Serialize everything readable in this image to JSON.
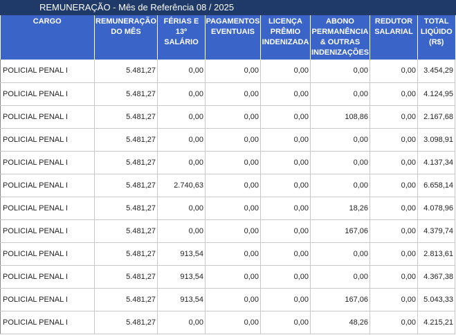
{
  "title": "REMUNERAÇÃO - Mês de Referência 08 / 2025",
  "headers": [
    "CARGO",
    "REMUNERAÇÃO DO MÊS",
    "FÉRIAS E 13º SALÁRIO",
    "PAGAMENTOS EVENTUAIS",
    "LICENÇA PRÊMIO INDENIZADA",
    "ABONO PERMANÊNCIA & OUTRAS INDENIZAÇÕES",
    "REDUTOR SALARIAL",
    "TOTAL LIQÚIDO (R$)"
  ],
  "rows": [
    [
      "POLICIAL PENAL I",
      "5.481,27",
      "0,00",
      "0,00",
      "0,00",
      "0,00",
      "0,00",
      "3.454,29"
    ],
    [
      "POLICIAL PENAL I",
      "5.481,27",
      "0,00",
      "0,00",
      "0,00",
      "0,00",
      "0,00",
      "4.124,95"
    ],
    [
      "POLICIAL PENAL I",
      "5.481,27",
      "0,00",
      "0,00",
      "0,00",
      "108,86",
      "0,00",
      "2.167,68"
    ],
    [
      "POLICIAL PENAL I",
      "5.481,27",
      "0,00",
      "0,00",
      "0,00",
      "0,00",
      "0,00",
      "3.098,91"
    ],
    [
      "POLICIAL PENAL I",
      "5.481,27",
      "0,00",
      "0,00",
      "0,00",
      "0,00",
      "0,00",
      "4.137,34"
    ],
    [
      "POLICIAL PENAL I",
      "5.481,27",
      "2.740,63",
      "0,00",
      "0,00",
      "0,00",
      "0,00",
      "6.658,14"
    ],
    [
      "POLICIAL PENAL I",
      "5.481,27",
      "0,00",
      "0,00",
      "0,00",
      "18,26",
      "0,00",
      "4.078,96"
    ],
    [
      "POLICIAL PENAL I",
      "5.481,27",
      "0,00",
      "0,00",
      "0,00",
      "167,06",
      "0,00",
      "4.379,74"
    ],
    [
      "POLICIAL PENAL I",
      "5.481,27",
      "913,54",
      "0,00",
      "0,00",
      "0,00",
      "0,00",
      "2.813,61"
    ],
    [
      "POLICIAL PENAL I",
      "5.481,27",
      "913,54",
      "0,00",
      "0,00",
      "0,00",
      "0,00",
      "4.367,38"
    ],
    [
      "POLICIAL PENAL I",
      "5.481,27",
      "913,54",
      "0,00",
      "0,00",
      "167,06",
      "0,00",
      "5.043,33"
    ],
    [
      "POLICIAL PENAL I",
      "5.481,27",
      "0,00",
      "0,00",
      "0,00",
      "48,26",
      "0,00",
      "4.215,21"
    ]
  ]
}
